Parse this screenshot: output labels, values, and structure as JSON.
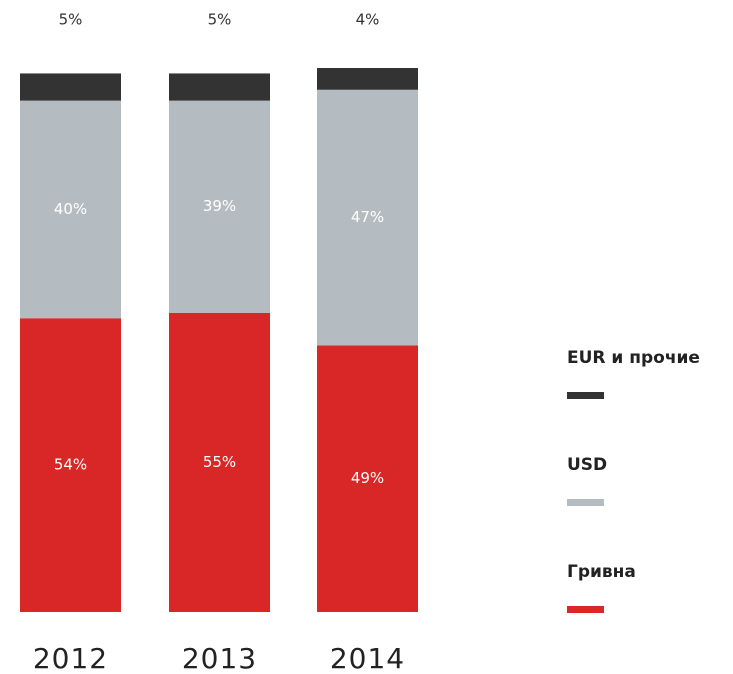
{
  "chart_data": {
    "type": "stacked_bar",
    "categories": [
      "2012",
      "2013",
      "2014"
    ],
    "series": [
      {
        "name": "Гривна",
        "color": "#d92727",
        "values": [
          54,
          55,
          49
        ],
        "value_labels": [
          "54%",
          "55%",
          "49%"
        ]
      },
      {
        "name": "USD",
        "color": "#b5bcc1",
        "values": [
          40,
          39,
          47
        ],
        "value_labels": [
          "40%",
          "39%",
          "47%"
        ]
      },
      {
        "name": "EUR и прочие",
        "color": "#333333",
        "values": [
          5,
          5,
          4
        ],
        "value_labels": [
          "5%",
          "5%",
          "4%"
        ]
      }
    ],
    "ylim": [
      0,
      100
    ],
    "legend": "right"
  }
}
